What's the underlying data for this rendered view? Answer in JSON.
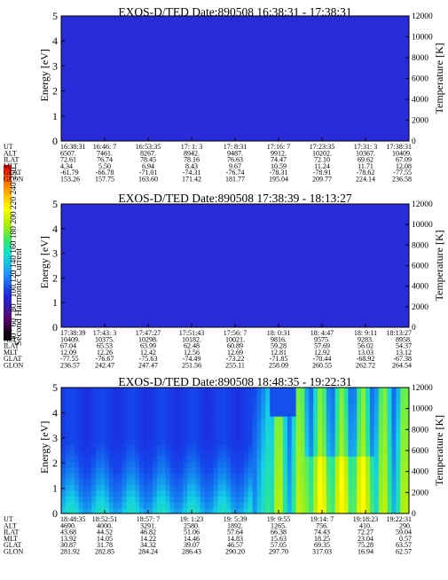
{
  "colorbar": {
    "label": "Second Harmonic Current",
    "ticks": [
      "40",
      "60",
      "80",
      "100",
      "120",
      "140",
      "160",
      "180",
      "200",
      "220",
      "240",
      "250"
    ],
    "colors": [
      "#000000",
      "#2a0030",
      "#5a0070",
      "#3a1a9e",
      "#2222d8",
      "#1f5ae6",
      "#1e90ff",
      "#17c0e0",
      "#14e0c8",
      "#2ee878",
      "#7ef020",
      "#c8f000",
      "#ffff00",
      "#ffc800",
      "#ff8c00",
      "#ff4500",
      "#ff0000"
    ]
  },
  "chart_data": [
    {
      "type": "heatmap",
      "title": "EXOS-D/TED   Date:890508   16:38:31 - 17:38:31",
      "ylabel": "Energy [eV]",
      "y2label": "Temperature [K]",
      "ylim": [
        0,
        5
      ],
      "y2lim": [
        0,
        12000
      ],
      "yticks": [
        "0",
        "1",
        "2",
        "3",
        "4",
        "5"
      ],
      "y2ticks": [
        "0",
        "2000",
        "4000",
        "6000",
        "8000",
        "10000",
        "12000"
      ],
      "fill": "uniform-blue",
      "row_labels": [
        "UT",
        "ALT",
        "ILAT",
        "MLT",
        "GLAT",
        "GLON"
      ],
      "columns": [
        {
          "UT": "16:38:31",
          "ALT": "6507.",
          "ILAT": "72.61",
          "MLT": "4.34",
          "GLAT": "-61.79",
          "GLON": "153.26"
        },
        {
          "UT": "16:46: 7",
          "ALT": "7461.",
          "ILAT": "76.74",
          "MLT": "5.50",
          "GLAT": "-66.78",
          "GLON": "157.75"
        },
        {
          "UT": "16:53:35",
          "ALT": "8267.",
          "ILAT": "78.45",
          "MLT": "6.94",
          "GLAT": "-71.01",
          "GLON": "163.60"
        },
        {
          "UT": "17: 1: 3",
          "ALT": "8942.",
          "ILAT": "78.16",
          "MLT": "8.43",
          "GLAT": "-74.31",
          "GLON": "171.42"
        },
        {
          "UT": "17: 8:31",
          "ALT": "9487.",
          "ILAT": "76.63",
          "MLT": "9.67",
          "GLAT": "-76.74",
          "GLON": "181.77"
        },
        {
          "UT": "17:16: 7",
          "ALT": "9912.",
          "ILAT": "74.47",
          "MLT": "10.59",
          "GLAT": "-78.31",
          "GLON": "195.04"
        },
        {
          "UT": "17:23:35",
          "ALT": "10202.",
          "ILAT": "72.10",
          "MLT": "11.24",
          "GLAT": "-78.91",
          "GLON": "209.77"
        },
        {
          "UT": "17:31: 3",
          "ALT": "10367.",
          "ILAT": "69.62",
          "MLT": "11.71",
          "GLAT": "-78.62",
          "GLON": "224.14"
        },
        {
          "UT": "17:38:31",
          "ALT": "10409.",
          "ILAT": "67.09",
          "MLT": "12.08",
          "GLAT": "-77.55",
          "GLON": "236.58"
        }
      ]
    },
    {
      "type": "heatmap",
      "title": "EXOS-D/TED   Date:890508   17:38:39 - 18:13:27",
      "ylabel": "Energy [eV]",
      "y2label": "Temperature [K]",
      "ylim": [
        0,
        5
      ],
      "y2lim": [
        0,
        12000
      ],
      "yticks": [
        "0",
        "1",
        "2",
        "3",
        "4",
        "5"
      ],
      "y2ticks": [
        "0",
        "2000",
        "4000",
        "6000",
        "8000",
        "10000",
        "12000"
      ],
      "fill": "uniform-blue",
      "row_labels": [
        "UT",
        "ALT",
        "ILAT",
        "MLT",
        "GLAT",
        "GLON"
      ],
      "columns": [
        {
          "UT": "17:38:39",
          "ALT": "10409.",
          "ILAT": "67.04",
          "MLT": "12.09",
          "GLAT": "-77.55",
          "GLON": "236.57"
        },
        {
          "UT": "17:43: 3",
          "ALT": "10375.",
          "ILAT": "65.53",
          "MLT": "12.26",
          "GLAT": "-76.67",
          "GLON": "242.47"
        },
        {
          "UT": "17:47:27",
          "ALT": "10298.",
          "ILAT": "63.99",
          "MLT": "12.42",
          "GLAT": "-75.63",
          "GLON": "247.47"
        },
        {
          "UT": "17:51:43",
          "ALT": "10182.",
          "ILAT": "62.48",
          "MLT": "12.56",
          "GLAT": "-74.49",
          "GLON": "251.56"
        },
        {
          "UT": "17:56: 7",
          "ALT": "10021.",
          "ILAT": "60.89",
          "MLT": "12.69",
          "GLAT": "-73.22",
          "GLON": "255.11"
        },
        {
          "UT": "18: 0:31",
          "ALT": "9816.",
          "ILAT": "59.28",
          "MLT": "12.81",
          "GLAT": "-71.85",
          "GLON": "258.09"
        },
        {
          "UT": "18: 4:47",
          "ALT": "9575.",
          "ILAT": "57.69",
          "MLT": "12.92",
          "GLAT": "-70.44",
          "GLON": "260.55"
        },
        {
          "UT": "18: 9:11",
          "ALT": "9283.",
          "ILAT": "56.02",
          "MLT": "13.03",
          "GLAT": "-68.92",
          "GLON": "262.72"
        },
        {
          "UT": "18:13:27",
          "ALT": "8958.",
          "ILAT": "54.37",
          "MLT": "13.12",
          "GLAT": "-67.38",
          "GLON": "264.54"
        }
      ]
    },
    {
      "type": "heatmap",
      "title": "EXOS-D/TED   Date:890508   18:48:35 - 19:22:31",
      "ylabel": "Energy [eV]",
      "y2label": "Temperature [K]",
      "ylim": [
        0,
        5
      ],
      "y2lim": [
        0,
        12000
      ],
      "yticks": [
        "0",
        "1",
        "2",
        "3",
        "4",
        "5"
      ],
      "y2ticks": [
        "0",
        "2000",
        "4000",
        "6000",
        "8000",
        "10000",
        "12000"
      ],
      "fill": "spectrogram",
      "row_labels": [
        "UT",
        "ALT",
        "ILAT",
        "MLT",
        "GLAT",
        "GLON"
      ],
      "columns": [
        {
          "UT": "18:48:35",
          "ALT": "4690.",
          "ILAT": "43.68",
          "MLT": "13.92",
          "GLAT": "30.87",
          "GLON": "281.92"
        },
        {
          "UT": "18:52:51",
          "ALT": "4000.",
          "ILAT": "44.52",
          "MLT": "14.05",
          "GLAT": "31.78",
          "GLON": "282.85"
        },
        {
          "UT": "18:57: 7",
          "ALT": "3291.",
          "ILAT": "46.82",
          "MLT": "14.22",
          "GLAT": "34.32",
          "GLON": "284.24"
        },
        {
          "UT": "19: 1:23",
          "ALT": "2580.",
          "ILAT": "51.06",
          "MLT": "14.46",
          "GLAT": "39.07",
          "GLON": "286.43"
        },
        {
          "UT": "19: 5:39",
          "ALT": "1892.",
          "ILAT": "57.64",
          "MLT": "14.83",
          "GLAT": "46.57",
          "GLON": "290.20"
        },
        {
          "UT": "19: 9:55",
          "ALT": "1265.",
          "ILAT": "66.38",
          "MLT": "15.63",
          "GLAT": "57.05",
          "GLON": "297.70"
        },
        {
          "UT": "19:14: 7",
          "ALT": "756.",
          "ILAT": "74.43",
          "MLT": "18.25",
          "GLAT": "69.35",
          "GLON": "317.03"
        },
        {
          "UT": "19:18:23",
          "ALT": "410.",
          "ILAT": "72.27",
          "MLT": "23.04",
          "GLAT": "75.28",
          "GLON": "16.94"
        },
        {
          "UT": "19:22:31",
          "ALT": "290.",
          "ILAT": "59.04",
          "MLT": "0.57",
          "GLAT": "63.57",
          "GLON": "62.57"
        }
      ]
    }
  ]
}
